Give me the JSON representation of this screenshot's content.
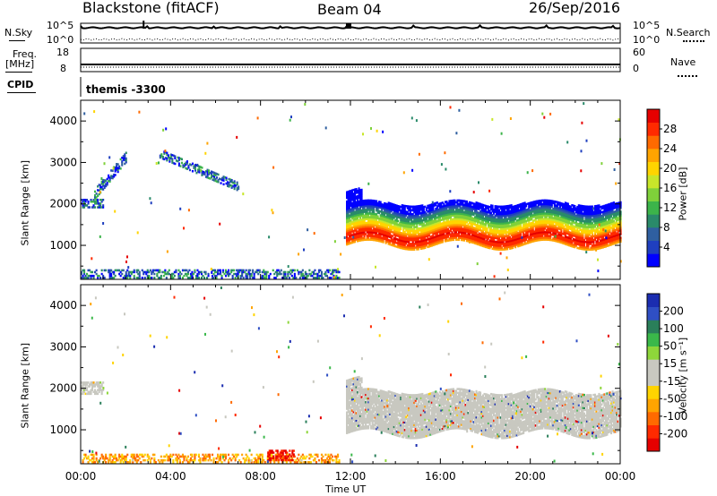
{
  "header": {
    "station": "Blackstone (fitACF)",
    "beam": "Beam 04",
    "date": "26/Sep/2016"
  },
  "noise_panel": {
    "left_label": "N.Sky",
    "right_label": "N.Search",
    "left_ticks": [
      "10^5",
      "10^0"
    ],
    "right_ticks": [
      "10^5",
      "10^0"
    ]
  },
  "freq_panel": {
    "left_label_top": "Freq.",
    "left_label_unit": "[MHz]",
    "right_label": "Nave",
    "left_ticks": [
      "18",
      "8"
    ],
    "right_ticks": [
      "60",
      "0"
    ]
  },
  "cpid": {
    "label": "CPID",
    "value": "themis -3300"
  },
  "chart_data": [
    {
      "type": "heatmap",
      "name": "power",
      "ylabel": "Slant Range [km]",
      "yticks": [
        1000,
        2000,
        3000,
        4000
      ],
      "ylim": [
        180,
        4500
      ],
      "xlim_hours": [
        0,
        24
      ],
      "colorbar": {
        "label": "Power [dB]",
        "ticks": [
          "4",
          "8",
          "12",
          "16",
          "20",
          "24",
          "28"
        ],
        "colors": [
          "#0000ff",
          "#1f3fbf",
          "#2f5fa0",
          "#2a8a6a",
          "#3cb44a",
          "#7fd13a",
          "#c8e62a",
          "#ffd400",
          "#ffa400",
          "#ff6a00",
          "#ff2a00",
          "#e60000"
        ]
      },
      "regions": [
        {
          "name": "early-echo",
          "start_h": 0.0,
          "end_h": 1.0,
          "range_start_km": 1900,
          "range_end_km": 2100
        },
        {
          "name": "rising-arc",
          "start_h": 0.6,
          "end_h": 2.0,
          "range_start_km": 2100,
          "range_end_km": 3100
        },
        {
          "name": "near-range",
          "start_h": 0.0,
          "end_h": 11.5,
          "range_start_km": 200,
          "range_end_km": 400
        },
        {
          "name": "mid-arc",
          "start_h": 3.5,
          "end_h": 7.0,
          "range_start_km": 2300,
          "range_end_km": 3200
        },
        {
          "name": "main-band",
          "start_h": 11.8,
          "end_h": 24.0,
          "range_start_km": 1000,
          "range_end_km": 2000,
          "peak_db": 28
        }
      ]
    },
    {
      "type": "heatmap",
      "name": "velocity",
      "ylabel": "Slant Range [km]",
      "yticks": [
        1000,
        2000,
        3000,
        4000
      ],
      "ylim": [
        180,
        4500
      ],
      "xlim_hours": [
        0,
        24
      ],
      "colorbar": {
        "label": "Velocity [m s⁻¹]",
        "ticks": [
          "200",
          "100",
          "50",
          "15",
          "-15",
          "-50",
          "-100",
          "-200"
        ],
        "colors": [
          "#1b2db0",
          "#2f4fc4",
          "#2a7f5a",
          "#3ab84a",
          "#8ed63a",
          "#c8c8c0",
          "#c8c8c0",
          "#ffd400",
          "#ffa400",
          "#ff6a00",
          "#ff2a00",
          "#e60000"
        ]
      },
      "regions": [
        {
          "name": "ground-scatter-early",
          "start_h": 0.0,
          "end_h": 1.0,
          "range_start_km": 1850,
          "range_end_km": 2150,
          "velocity": 0
        },
        {
          "name": "ground-scatter-main",
          "start_h": 11.8,
          "end_h": 24.0,
          "range_start_km": 900,
          "range_end_km": 1900,
          "velocity": 0
        },
        {
          "name": "near-range-negative",
          "start_h": 0.0,
          "end_h": 11.5,
          "range_start_km": 200,
          "range_end_km": 400,
          "velocity": -60
        },
        {
          "name": "hot-spot",
          "start_h": 8.3,
          "end_h": 9.5,
          "range_start_km": 250,
          "range_end_km": 500,
          "velocity": -220
        }
      ]
    }
  ],
  "x_axis": {
    "label": "Time UT",
    "ticks": [
      "00:00",
      "04:00",
      "08:00",
      "12:00",
      "16:00",
      "20:00",
      "00:00"
    ]
  }
}
